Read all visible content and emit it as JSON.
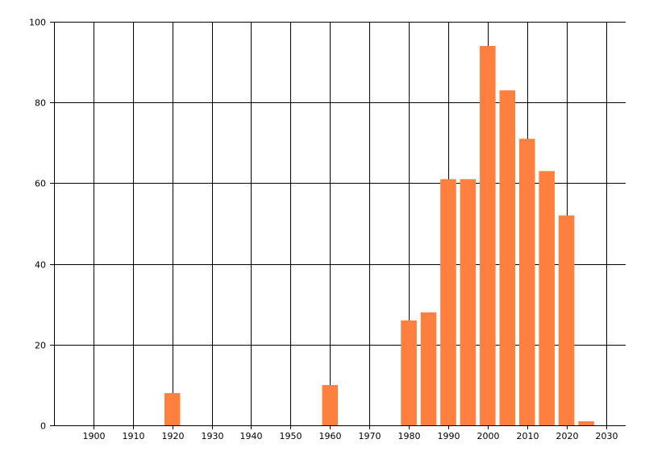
{
  "chart_data": {
    "type": "bar",
    "title": "",
    "xlabel": "",
    "ylabel": "",
    "xlim": [
      1890,
      2035
    ],
    "ylim": [
      0,
      100
    ],
    "x_ticks": [
      1900,
      1910,
      1920,
      1930,
      1940,
      1950,
      1960,
      1970,
      1980,
      1990,
      2000,
      2010,
      2020,
      2030
    ],
    "y_ticks": [
      0,
      20,
      40,
      60,
      80,
      100
    ],
    "grid": true,
    "legend": "none",
    "bar_width_years": 4,
    "series": [
      {
        "color": "#ff7f3f",
        "x": [
          1920,
          1960,
          1980,
          1985,
          1990,
          1995,
          2000,
          2005,
          2010,
          2015,
          2020,
          2025
        ],
        "values": [
          8,
          10,
          26,
          28,
          61,
          61,
          94,
          83,
          71,
          63,
          52,
          1
        ]
      }
    ]
  }
}
